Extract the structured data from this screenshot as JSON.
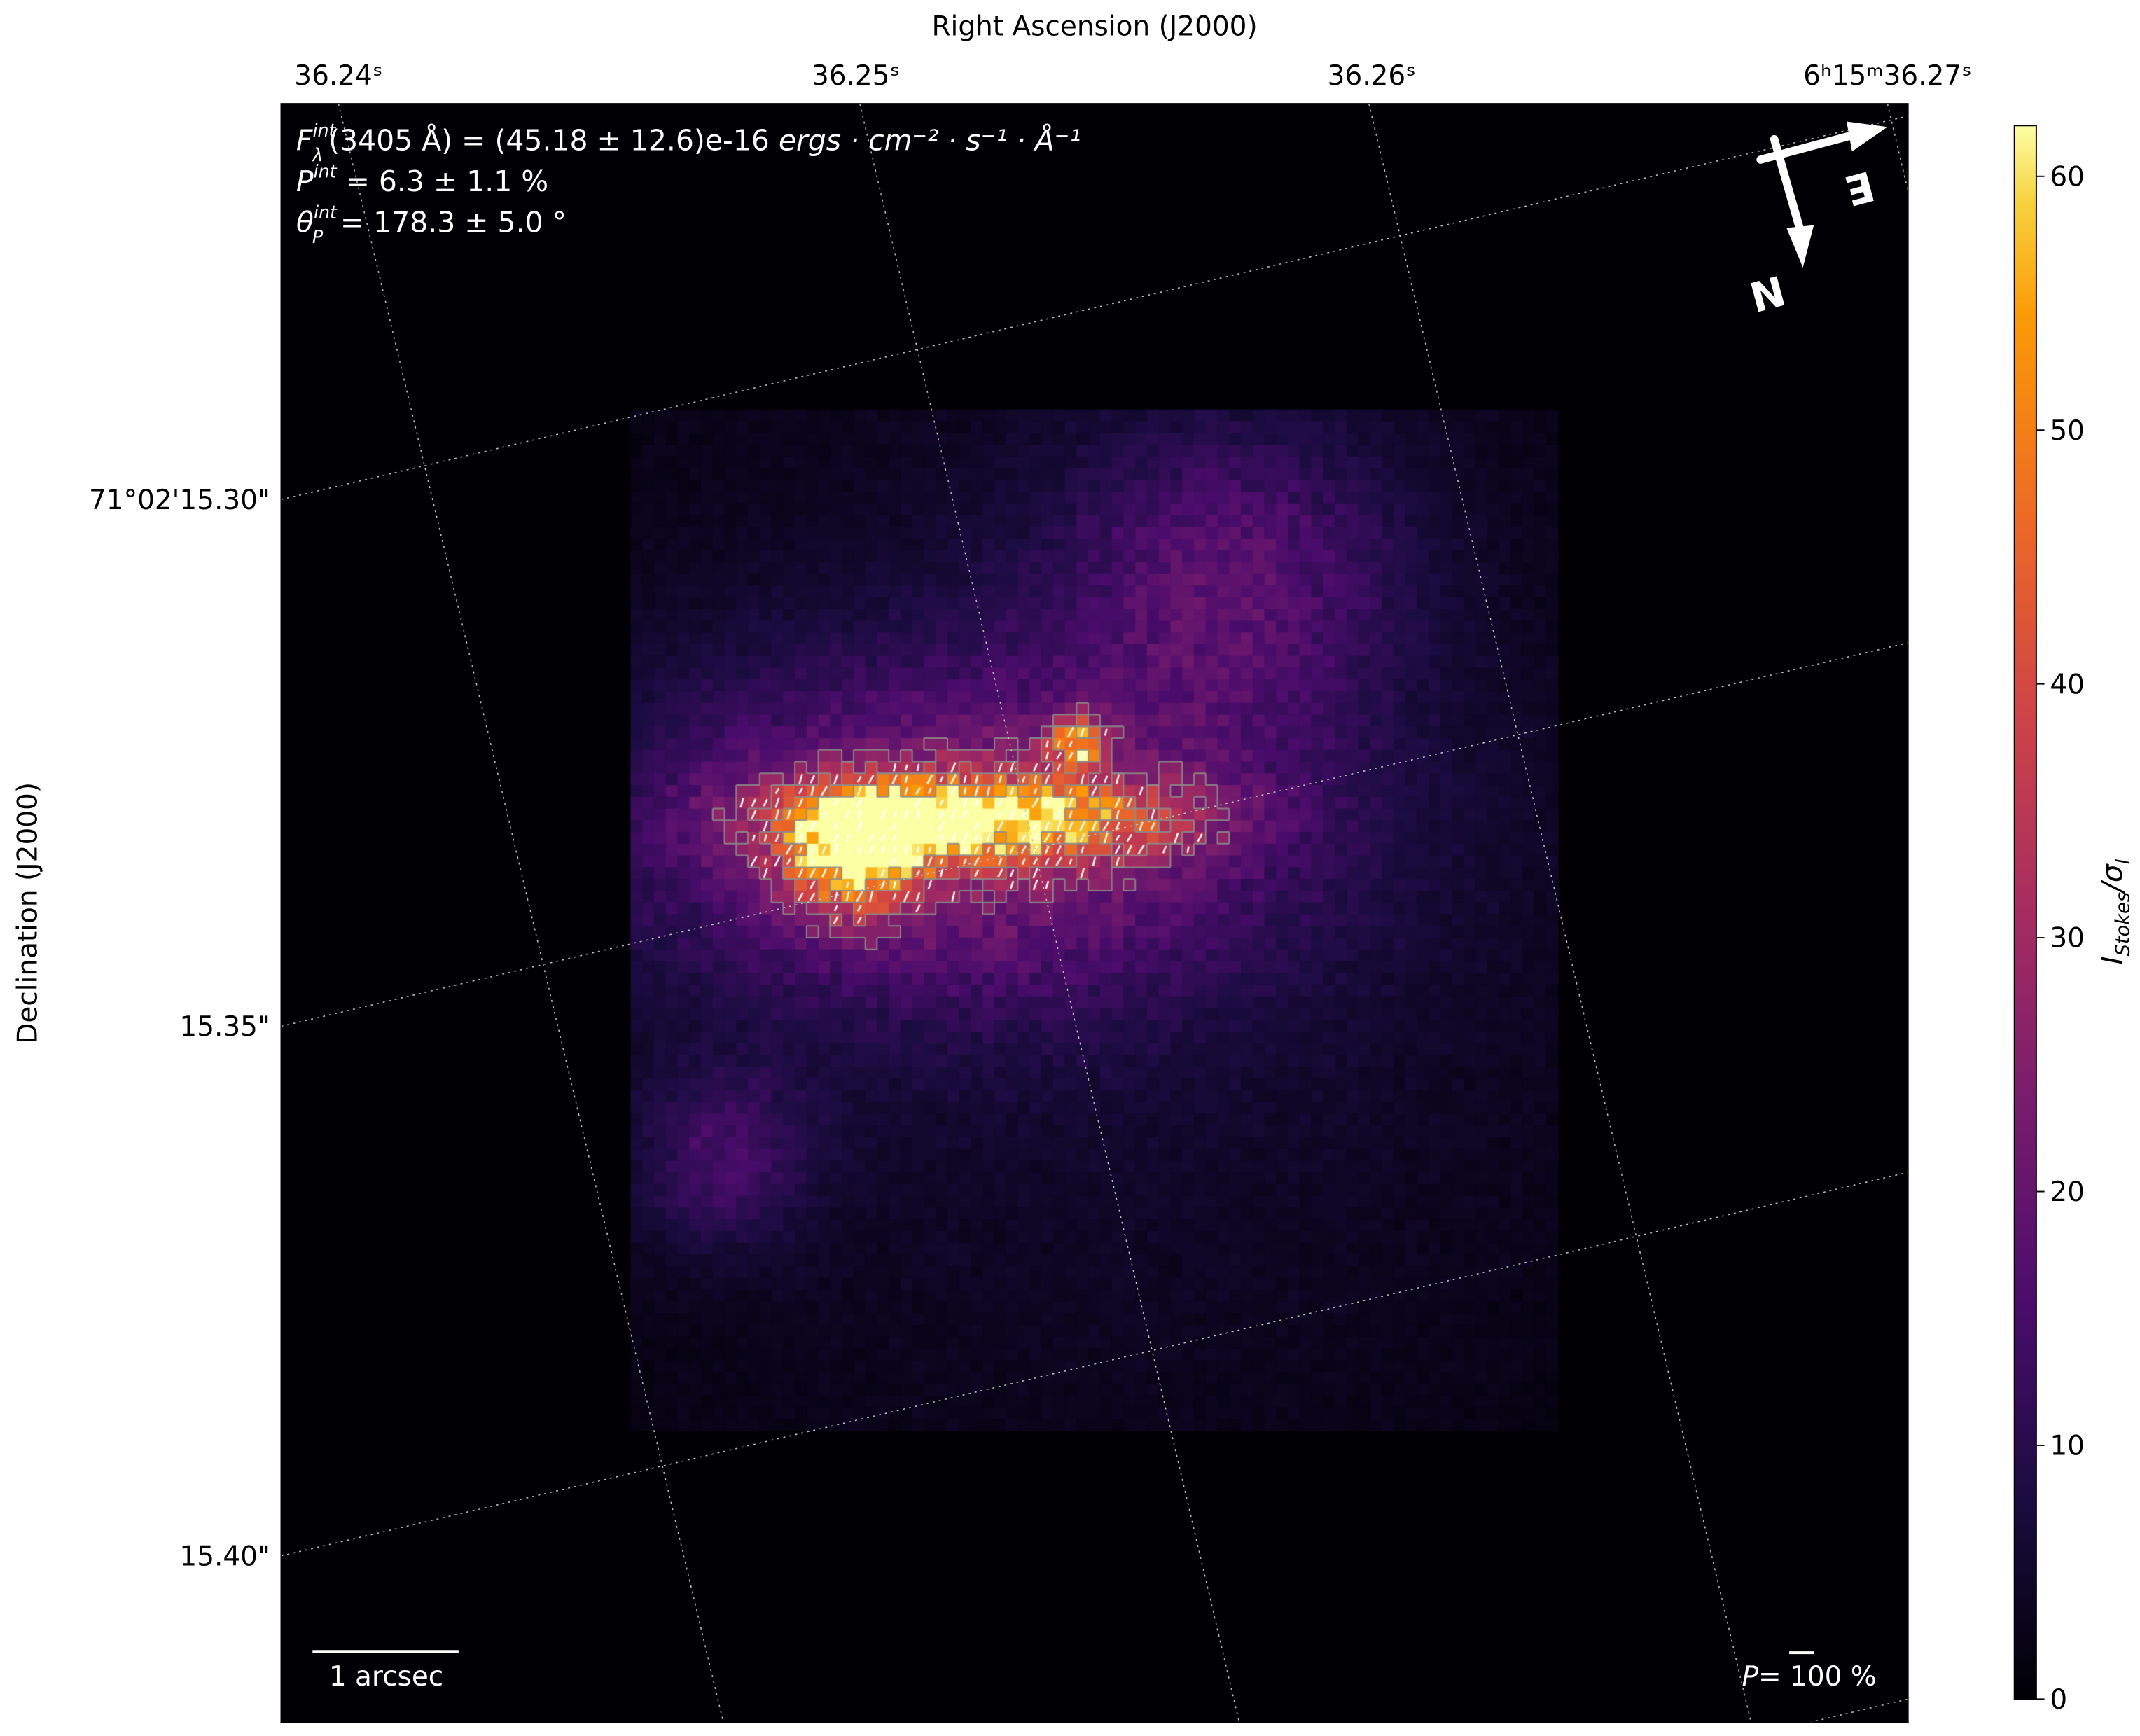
{
  "chart_data": {
    "type": "heatmap",
    "title": "",
    "xlabel": "Right Ascension (J2000)",
    "ylabel": "Declination (J2000)",
    "x_ticks": [
      "36.24ˢ",
      "36.25ˢ",
      "36.26ˢ",
      "6ʰ15ᵐ36.27ˢ"
    ],
    "y_ticks": [
      "71°02'15.30\"",
      "15.35\"",
      "15.40\""
    ],
    "grid": true,
    "colormap": "inferno",
    "colorbar": {
      "label": "I_Stokes/σ_I",
      "label_main": "I",
      "label_sub": "Stokes",
      "label_tail": "/σ",
      "label_tail_sub": "I",
      "range": [
        0,
        62
      ],
      "ticks": [
        "0",
        "10",
        "20",
        "30",
        "40",
        "50",
        "60"
      ]
    },
    "annotations": {
      "flux": {
        "sym": "F",
        "sup": "int",
        "sub": "λ",
        "text": "(3405 Å) = (45.18 ± 12.6)e-16 ",
        "units": "ergs · cm⁻² · s⁻¹ · Å⁻¹"
      },
      "pol": {
        "sym": "P",
        "sup": "int",
        "text": " = 6.3 ± 1.1 %"
      },
      "angle": {
        "sym": "θ",
        "sup": "int",
        "sub": "P",
        "text": " = 178.3 ± 5.0 °"
      },
      "scale_bar": "1 arcsec",
      "vector_scale": {
        "sym": "P",
        "text": "= 100 %"
      },
      "compass": {
        "north": "N",
        "east": "E"
      }
    },
    "contour_levels": [
      25,
      35,
      45,
      55
    ],
    "peak_value": 60
  }
}
